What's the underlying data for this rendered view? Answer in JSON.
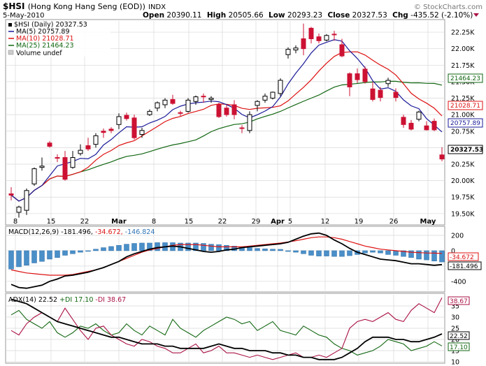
{
  "header": {
    "symbol_title": "$HSI",
    "exchange_title": "(Hong Kong Hang Seng (EOD))",
    "exchange": "INDX",
    "watermark": "© StockCharts.com",
    "date": "5-May-2010",
    "open_label": "Open",
    "open": "20390.11",
    "high_label": "High",
    "high": "20505.66",
    "low_label": "Low",
    "low": "20293.23",
    "close_label": "Close",
    "close": "20327.53",
    "chg_label": "Chg",
    "chg": "-435.52 (-2.10%)"
  },
  "legend": {
    "price": "$HSI (Daily) 20327.53",
    "ma5": "MA(5) 20757.89",
    "ma10": "MA(10) 21028.71",
    "ma25": "MA(25) 21464.23",
    "volume": "Volume undef"
  },
  "colors": {
    "up": "#000000",
    "down": "#cc1133",
    "ma5": "#1a1a99",
    "ma10": "#dd1111",
    "ma25": "#116611",
    "grid": "#d8d8d8",
    "macd_hist": "#4a8fc8",
    "adx": "#000000",
    "plus_di": "#116611",
    "minus_di": "#aa1144"
  },
  "panels": {
    "macd_label_prefix": "MACD(12,26,9)",
    "macd_v1": "-181.496,",
    "macd_v2": "-34.672,",
    "macd_v3": "-146.824",
    "adx_label_prefix": "ADX(14)",
    "adx_v": "22.52",
    "plus_di_label": "+DI 17.10",
    "minus_di_label": "-DI 38.67"
  },
  "value_tags": {
    "ma25": "21464.23",
    "ma10": "21028.71",
    "ma5": "20757.89",
    "close": "20327.53",
    "macd_signal": "-34.672",
    "macd_line": "-181.496",
    "minus_di": "38.67",
    "adx": "22.52",
    "plus_di": "17.10"
  },
  "chart_data": {
    "type": "candlestick",
    "x_labels": [
      "8",
      "15",
      "22",
      "Mar",
      "8",
      "15",
      "22",
      "29",
      "Apr",
      "5",
      "12",
      "19",
      "26",
      "May"
    ],
    "price_axis_ticks": [
      "22.25K",
      "22.00K",
      "21.75K",
      "21.50K",
      "21.25K",
      "21.00K",
      "20.75K",
      "20.50K",
      "20.25K",
      "20.00K",
      "19.75K",
      "19.50K"
    ],
    "price_ylim": [
      19350,
      22420
    ],
    "candles": [
      {
        "o": 19800,
        "h": 19900,
        "l": 19700,
        "c": 19780
      },
      {
        "o": 19520,
        "h": 19620,
        "l": 19440,
        "c": 19600
      },
      {
        "o": 19550,
        "h": 19880,
        "l": 19480,
        "c": 19850
      },
      {
        "o": 19950,
        "h": 20200,
        "l": 19920,
        "c": 20180
      },
      {
        "o": 20200,
        "h": 20350,
        "l": 20150,
        "c": 20220
      },
      {
        "o": 20570,
        "h": 20600,
        "l": 20500,
        "c": 20520
      },
      {
        "o": 20350,
        "h": 20400,
        "l": 20280,
        "c": 20340
      },
      {
        "o": 20350,
        "h": 20450,
        "l": 20000,
        "c": 20020
      },
      {
        "o": 20200,
        "h": 20450,
        "l": 20180,
        "c": 20350
      },
      {
        "o": 20410,
        "h": 20550,
        "l": 20380,
        "c": 20460
      },
      {
        "o": 20530,
        "h": 20650,
        "l": 20450,
        "c": 20480
      },
      {
        "o": 20550,
        "h": 20720,
        "l": 20500,
        "c": 20680
      },
      {
        "o": 20750,
        "h": 20790,
        "l": 20650,
        "c": 20730
      },
      {
        "o": 20780,
        "h": 20810,
        "l": 20720,
        "c": 20760
      },
      {
        "o": 20850,
        "h": 21020,
        "l": 20780,
        "c": 20970
      },
      {
        "o": 20990,
        "h": 21030,
        "l": 20910,
        "c": 20940
      },
      {
        "o": 20950,
        "h": 21000,
        "l": 20620,
        "c": 20650
      },
      {
        "o": 20700,
        "h": 20800,
        "l": 20650,
        "c": 20760
      },
      {
        "o": 21000,
        "h": 21080,
        "l": 20980,
        "c": 21050
      },
      {
        "o": 21100,
        "h": 21200,
        "l": 21050,
        "c": 21180
      },
      {
        "o": 21150,
        "h": 21250,
        "l": 21100,
        "c": 21220
      },
      {
        "o": 21230,
        "h": 21300,
        "l": 21150,
        "c": 21170
      },
      {
        "o": 21030,
        "h": 21060,
        "l": 20980,
        "c": 21020
      },
      {
        "o": 21050,
        "h": 21250,
        "l": 21030,
        "c": 21220
      },
      {
        "o": 21200,
        "h": 21290,
        "l": 21150,
        "c": 21270
      },
      {
        "o": 21280,
        "h": 21320,
        "l": 21180,
        "c": 21270
      },
      {
        "o": 21230,
        "h": 21280,
        "l": 21180,
        "c": 21250
      },
      {
        "o": 21150,
        "h": 21180,
        "l": 20950,
        "c": 20970
      },
      {
        "o": 21100,
        "h": 21150,
        "l": 20970,
        "c": 21000
      },
      {
        "o": 21150,
        "h": 21220,
        "l": 20930,
        "c": 21000
      },
      {
        "o": 20800,
        "h": 20840,
        "l": 20720,
        "c": 20790
      },
      {
        "o": 20760,
        "h": 21050,
        "l": 20720,
        "c": 21000
      },
      {
        "o": 21140,
        "h": 21220,
        "l": 21050,
        "c": 21200
      },
      {
        "o": 21220,
        "h": 21320,
        "l": 21180,
        "c": 21280
      },
      {
        "o": 21250,
        "h": 21350,
        "l": 21230,
        "c": 21340
      },
      {
        "o": 21320,
        "h": 21550,
        "l": 21280,
        "c": 21520
      },
      {
        "o": 21910,
        "h": 22020,
        "l": 21850,
        "c": 21990
      },
      {
        "o": 21980,
        "h": 22050,
        "l": 21930,
        "c": 22010
      },
      {
        "o": 22150,
        "h": 22380,
        "l": 21900,
        "c": 22000
      },
      {
        "o": 22310,
        "h": 22330,
        "l": 22080,
        "c": 22150
      },
      {
        "o": 22180,
        "h": 22230,
        "l": 22080,
        "c": 22120
      },
      {
        "o": 22130,
        "h": 22220,
        "l": 22110,
        "c": 22200
      },
      {
        "o": 22220,
        "h": 22270,
        "l": 22120,
        "c": 22210
      },
      {
        "o": 22060,
        "h": 22150,
        "l": 21870,
        "c": 21890
      },
      {
        "o": 21620,
        "h": 21640,
        "l": 21280,
        "c": 21420
      },
      {
        "o": 21620,
        "h": 21700,
        "l": 21480,
        "c": 21530
      },
      {
        "o": 21690,
        "h": 21730,
        "l": 21470,
        "c": 21500
      },
      {
        "o": 21390,
        "h": 21500,
        "l": 21200,
        "c": 21230
      },
      {
        "o": 21370,
        "h": 21420,
        "l": 21200,
        "c": 21260
      },
      {
        "o": 21470,
        "h": 21560,
        "l": 21420,
        "c": 21520
      },
      {
        "o": 21340,
        "h": 21400,
        "l": 21200,
        "c": 21260
      },
      {
        "o": 20960,
        "h": 21000,
        "l": 20800,
        "c": 20850
      },
      {
        "o": 20870,
        "h": 20920,
        "l": 20760,
        "c": 20780
      },
      {
        "o": 20930,
        "h": 21060,
        "l": 20900,
        "c": 21040
      },
      {
        "o": 20830,
        "h": 20900,
        "l": 20760,
        "c": 20770
      },
      {
        "o": 20900,
        "h": 20940,
        "l": 20750,
        "c": 20770
      },
      {
        "o": 20390,
        "h": 20506,
        "l": 20293,
        "c": 20328
      }
    ],
    "macd_axis_ticks": [
      "200",
      "0",
      "-200",
      "-400"
    ],
    "macd_ylim": [
      -520,
      300
    ],
    "macd_histogram": [
      -240,
      -210,
      -190,
      -160,
      -140,
      -110,
      -90,
      -60,
      -40,
      -20,
      0,
      20,
      40,
      55,
      70,
      85,
      95,
      100,
      100,
      105,
      105,
      105,
      100,
      100,
      100,
      95,
      85,
      80,
      70,
      60,
      50,
      40,
      30,
      25,
      20,
      18,
      -10,
      -20,
      -40,
      -60,
      -70,
      -70,
      -75,
      -75,
      -65,
      -50,
      -30,
      -20,
      -30,
      -50,
      -60,
      -75,
      -90,
      -110,
      -120,
      -135,
      -147
    ],
    "macd_line": [
      -440,
      -480,
      -490,
      -470,
      -450,
      -400,
      -370,
      -330,
      -320,
      -300,
      -280,
      -250,
      -220,
      -180,
      -140,
      -80,
      -40,
      -10,
      20,
      40,
      50,
      60,
      50,
      30,
      10,
      -10,
      -20,
      -10,
      10,
      20,
      40,
      50,
      60,
      70,
      80,
      90,
      110,
      150,
      190,
      220,
      230,
      200,
      140,
      90,
      30,
      -20,
      -50,
      -80,
      -110,
      -120,
      -130,
      -150,
      -170,
      -170,
      -180,
      -190,
      -181
    ],
    "macd_signal": [
      -250,
      -270,
      -290,
      -300,
      -310,
      -320,
      -320,
      -320,
      -310,
      -290,
      -270,
      -250,
      -220,
      -180,
      -140,
      -100,
      -60,
      -20,
      10,
      30,
      50,
      70,
      80,
      80,
      80,
      70,
      60,
      50,
      50,
      50,
      50,
      60,
      70,
      80,
      90,
      100,
      115,
      130,
      150,
      170,
      180,
      180,
      170,
      150,
      120,
      90,
      60,
      40,
      20,
      10,
      0,
      -10,
      -20,
      -25,
      -30,
      -32,
      -35
    ],
    "adx_axis_ticks": [
      "35",
      "30",
      "25",
      "20",
      "15",
      "10"
    ],
    "adx_ylim": [
      10,
      40
    ],
    "adx": [
      38,
      37,
      36,
      34,
      32,
      30,
      28,
      27,
      26,
      25,
      24,
      23,
      22,
      21,
      21,
      20,
      19,
      18,
      18,
      18,
      17,
      17,
      16,
      16,
      16,
      16,
      17,
      18,
      17,
      16,
      16,
      15,
      15,
      15,
      14,
      14,
      13,
      13,
      12,
      12,
      11,
      11,
      11,
      12,
      14,
      16,
      19,
      21,
      21,
      21,
      20,
      20,
      19,
      19,
      20,
      21,
      22.5
    ],
    "plus_di": [
      31,
      33,
      29,
      27,
      25,
      28,
      23,
      21,
      23,
      26,
      25,
      27,
      24,
      22,
      23,
      27,
      24,
      22,
      26,
      24,
      22,
      29,
      25,
      23,
      21,
      24,
      26,
      28,
      30,
      29,
      27,
      28,
      24,
      26,
      28,
      24,
      23,
      22,
      26,
      24,
      22,
      21,
      18,
      16,
      15,
      13,
      14,
      15,
      17,
      20,
      19,
      18,
      15,
      16,
      17,
      19,
      17.1
    ],
    "minus_di": [
      24,
      22,
      27,
      30,
      32,
      30,
      28,
      34,
      29,
      24,
      20,
      25,
      26,
      22,
      20,
      18,
      17,
      20,
      19,
      17,
      16,
      14,
      14,
      16,
      18,
      14,
      15,
      17,
      14,
      14,
      13,
      12,
      13,
      12,
      11,
      12,
      13,
      14,
      12,
      12,
      13,
      12,
      14,
      16,
      25,
      28,
      29,
      28,
      30,
      32,
      29,
      28,
      33,
      36,
      34,
      32,
      38.67
    ]
  }
}
